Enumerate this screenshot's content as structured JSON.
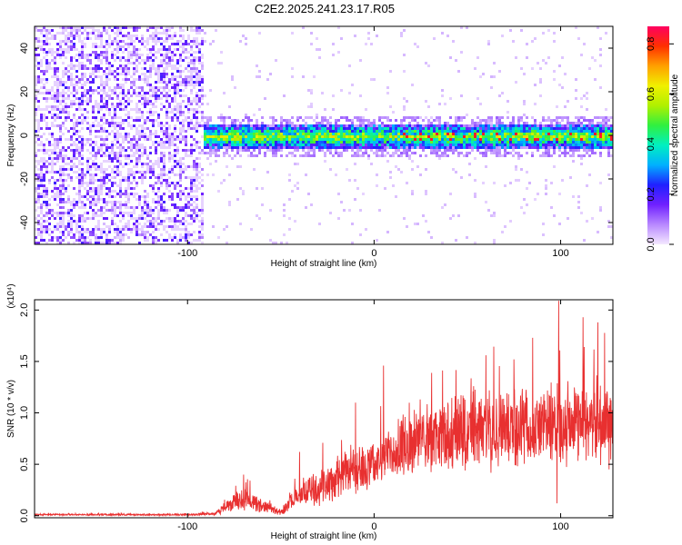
{
  "figure": {
    "title": "C2E2.2025.241.23.17.R05"
  },
  "chart_data": [
    {
      "type": "heatmap",
      "name": "spectrogram",
      "xlabel": "Height of straight line (km)",
      "ylabel": "Frequency (Hz)",
      "xlim": [
        -182,
        128
      ],
      "ylim": [
        -50,
        50
      ],
      "xticks": [
        -100,
        0,
        100
      ],
      "yticks": [
        -40,
        -20,
        0,
        20,
        40
      ],
      "xtick_labels": [
        "-100",
        "0",
        "100"
      ],
      "ytick_labels": [
        "-40",
        "-20",
        "0",
        "20",
        "40"
      ],
      "noise_region_x": [
        -182,
        -92
      ],
      "signal_start_x": -95,
      "signal_band_hz": [
        -6,
        6
      ],
      "peak_frequency_hz": 0,
      "colorbar": {
        "label": "Normalized spectral amplitude",
        "range": [
          0,
          0.87
        ],
        "ticks": [
          0,
          0.2,
          0.4,
          0.6,
          0.8
        ],
        "tick_labels": [
          "0.0",
          "0.2",
          "0.4",
          "0.6",
          "0.8"
        ],
        "colormap": [
          "#f4e8ff",
          "#b888ff",
          "#7020ff",
          "#2020ff",
          "#00b0ff",
          "#00f0c0",
          "#30f040",
          "#b0f000",
          "#f0f000",
          "#ffa000",
          "#ff3000",
          "#ff0060"
        ]
      }
    },
    {
      "type": "line",
      "name": "snr",
      "xlabel": "Height of straight line (km)",
      "ylabel": "SNR (10 * v/v)",
      "scale_label": "(x10⁴)",
      "xlim": [
        -182,
        128
      ],
      "ylim": [
        -0.02,
        2.1
      ],
      "xticks": [
        -100,
        0,
        100
      ],
      "yticks": [
        0.0,
        0.5,
        1.0,
        1.5,
        2.0
      ],
      "xtick_labels": [
        "-100",
        "0",
        "100"
      ],
      "ytick_labels": [
        "0.0",
        "0.5",
        "1.0",
        "1.5",
        "2.0"
      ],
      "line_color": "#e83030",
      "envelope": {
        "x": [
          -182,
          -100,
          -85,
          -80,
          -75,
          -70,
          -65,
          -60,
          -55,
          -50,
          -45,
          -40,
          -35,
          -30,
          -25,
          -20,
          -15,
          -10,
          -5,
          0,
          5,
          10,
          15,
          20,
          25,
          30,
          35,
          40,
          45,
          50,
          55,
          60,
          65,
          70,
          75,
          80,
          85,
          90,
          95,
          100,
          105,
          110,
          115,
          120,
          125,
          128
        ],
        "mean": [
          0.01,
          0.01,
          0.02,
          0.08,
          0.13,
          0.15,
          0.13,
          0.1,
          0.07,
          0.03,
          0.12,
          0.2,
          0.24,
          0.28,
          0.32,
          0.35,
          0.4,
          0.45,
          0.48,
          0.52,
          0.56,
          0.6,
          0.64,
          0.68,
          0.72,
          0.74,
          0.76,
          0.78,
          0.8,
          0.8,
          0.82,
          0.84,
          0.86,
          0.86,
          0.87,
          0.88,
          0.88,
          0.88,
          0.89,
          0.9,
          0.9,
          0.91,
          0.9,
          0.9,
          0.89,
          0.88
        ],
        "amp": [
          0.01,
          0.01,
          0.02,
          0.06,
          0.1,
          0.12,
          0.1,
          0.08,
          0.05,
          0.03,
          0.1,
          0.15,
          0.18,
          0.2,
          0.22,
          0.24,
          0.26,
          0.28,
          0.3,
          0.3,
          0.32,
          0.34,
          0.36,
          0.38,
          0.4,
          0.4,
          0.4,
          0.42,
          0.42,
          0.42,
          0.42,
          0.44,
          0.44,
          0.44,
          0.45,
          0.45,
          0.45,
          0.46,
          0.46,
          0.46,
          0.46,
          0.46,
          0.46,
          0.46,
          0.46,
          0.46
        ]
      },
      "spikes": [
        {
          "x": -70,
          "y": 0.4
        },
        {
          "x": -40,
          "y": 0.62
        },
        {
          "x": -10,
          "y": 1.1
        },
        {
          "x": 5,
          "y": 1.46
        },
        {
          "x": 60,
          "y": 1.56
        },
        {
          "x": 75,
          "y": 1.52
        },
        {
          "x": 85,
          "y": 1.73
        },
        {
          "x": 99,
          "y": 2.09
        },
        {
          "x": 112,
          "y": 1.93
        },
        {
          "x": 120,
          "y": 1.88
        }
      ],
      "dips": [
        {
          "x": 98,
          "y": 0.12
        },
        {
          "x": 126,
          "y": 0.45
        }
      ]
    }
  ]
}
